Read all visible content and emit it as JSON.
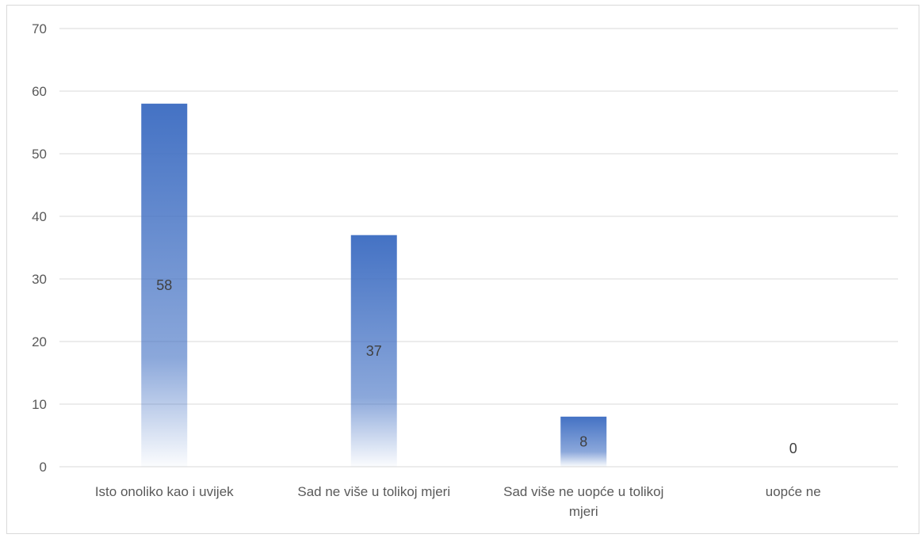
{
  "chart_data": {
    "type": "bar",
    "categories": [
      "Isto onoliko kao i uvijek",
      "Sad ne više u tolikoj mjeri",
      "Sad više ne uopće u tolikoj mjeri",
      "uopće ne"
    ],
    "values": [
      58,
      37,
      8,
      0
    ],
    "data_labels": [
      "58",
      "37",
      "8",
      "0"
    ],
    "ylim": [
      0,
      70
    ],
    "y_ticks": [
      0,
      10,
      20,
      30,
      40,
      50,
      60,
      70
    ],
    "y_tick_labels": [
      "0",
      "10",
      "20",
      "30",
      "40",
      "50",
      "60",
      "70"
    ],
    "grid": true,
    "legend": "none",
    "bar_color": "#4472C4",
    "title": "",
    "xlabel": "",
    "ylabel": ""
  }
}
